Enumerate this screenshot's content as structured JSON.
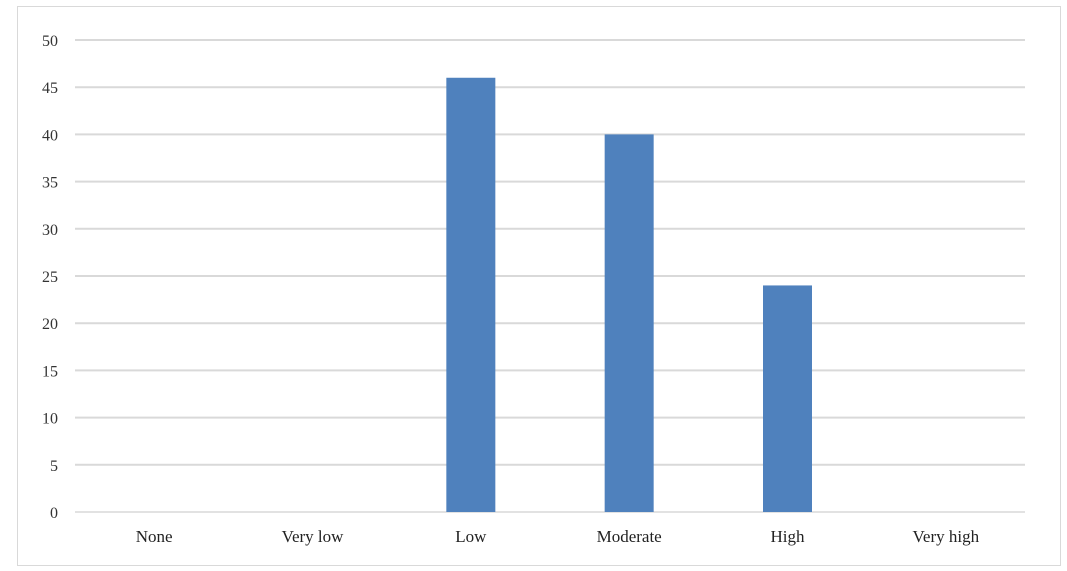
{
  "chart_data": {
    "type": "bar",
    "categories": [
      "None",
      "Very low",
      "Low",
      "Moderate",
      "High",
      "Very high"
    ],
    "values": [
      0,
      0,
      46,
      40,
      24,
      0
    ],
    "title": "",
    "xlabel": "",
    "ylabel": "",
    "ylim": [
      0,
      50
    ],
    "yticks": [
      0,
      5,
      10,
      15,
      20,
      25,
      30,
      35,
      40,
      45,
      50
    ],
    "grid": true,
    "bar_color": "#4f81bd",
    "grid_color": "#d9d9d9"
  }
}
